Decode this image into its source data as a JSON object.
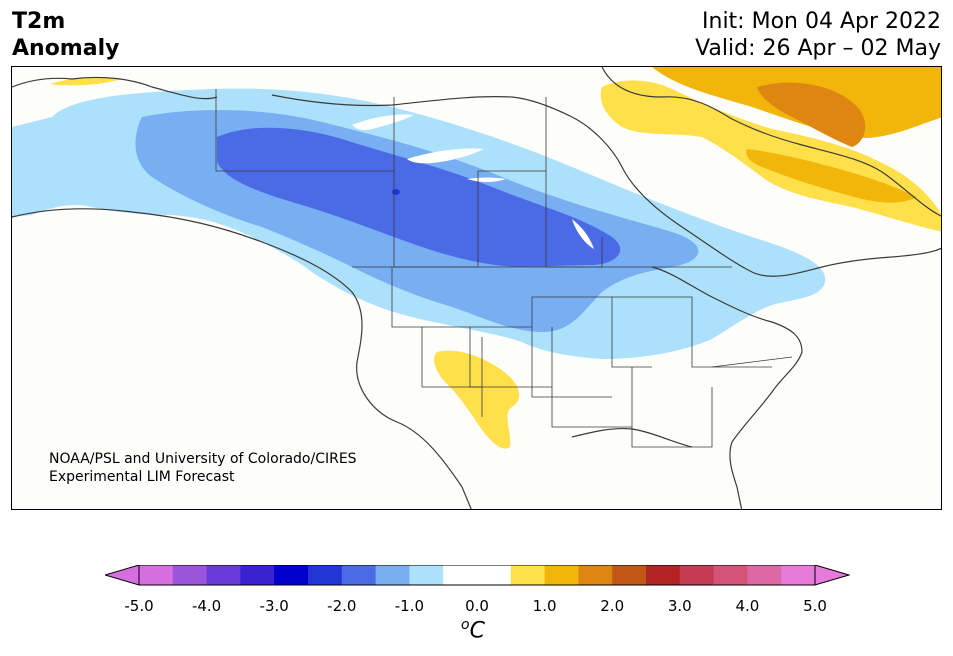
{
  "header": {
    "title_line1": "T2m",
    "title_line2": "Anomaly",
    "init": "Init: Mon 04 Apr 2022",
    "valid": "Valid: 26 Apr – 02 May"
  },
  "credit": {
    "line1": "NOAA/PSL and University of Colorado/CIRES",
    "line2": "Experimental LIM Forecast"
  },
  "colorbar": {
    "unit_base": "C",
    "unit_sup": "o",
    "tick_labels": [
      "-5.0",
      "-4.0",
      "-3.0",
      "-2.0",
      "-1.0",
      "0.0",
      "1.0",
      "2.0",
      "3.0",
      "4.0",
      "5.0"
    ],
    "colors": [
      "#d66ee0",
      "#9a55dc",
      "#6a3bd8",
      "#3a22d0",
      "#0000cc",
      "#2236d6",
      "#4a6ae6",
      "#78aef2",
      "#ade0fb",
      "#ffffff",
      "#ffffff",
      "#ffe04a",
      "#f2b50a",
      "#dd8612",
      "#c25616",
      "#b22424",
      "#c43a52",
      "#d55278",
      "#dd68a8",
      "#e87adc"
    ],
    "under_color": "#d66ee0",
    "over_color": "#e87adc"
  },
  "map": {
    "anomaly_colors": {
      "light_blue": "#ade0fb",
      "mid_blue": "#78aef2",
      "blue": "#4a6ae6",
      "dark_blue": "#2236d6",
      "yellow": "#ffe04a",
      "gold": "#f2b50a",
      "orange": "#dd8612"
    }
  }
}
